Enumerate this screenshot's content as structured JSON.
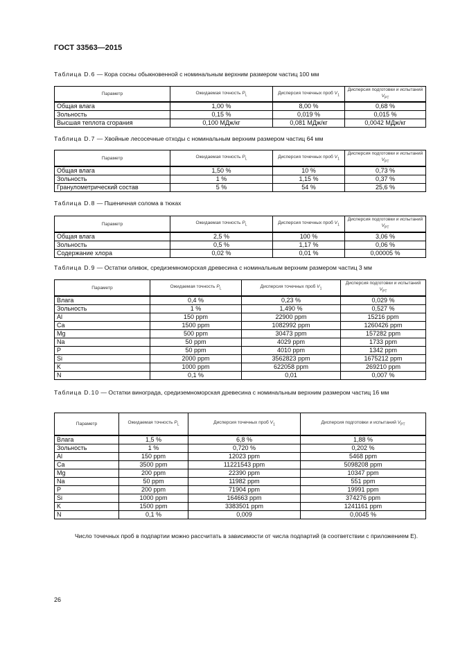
{
  "doc_header": "ГОСТ 33563—2015",
  "tables": [
    {
      "label": "Таблица D.6",
      "title": " — Кора сосны обыкновенной с номинальным верхним размером частиц 100 мм",
      "headers": [
        {
          "text": "Параметр"
        },
        {
          "text": "Ожидаемая точность ",
          "var": "P",
          "sub": "L"
        },
        {
          "text": "Дисперсия точечных проб ",
          "var": "V",
          "sub": "1"
        },
        {
          "text": "Дисперсия подготовки и испытаний ",
          "var": "V",
          "sub": "PT"
        }
      ],
      "rows": [
        [
          "Общая влага",
          "1,00 %",
          "8,00 %",
          "0,68 %"
        ],
        [
          "Зольность",
          "0,15 %",
          "0,019 %",
          "0,015 %"
        ],
        [
          "Высшая теплота сгорания",
          "0,100 МДж/кг",
          "0,081 МДж/кг",
          "0,0042 МДж/кг"
        ]
      ]
    },
    {
      "label": "Таблица D.7",
      "title": " — Хвойные лесосечные отходы с номинальным верхним размером частиц 64 мм",
      "headers": [
        {
          "text": "Параметр"
        },
        {
          "text": "Ожидаемая точность ",
          "var": "P",
          "sub": "L"
        },
        {
          "text": "Дисперсия точечных проб ",
          "var": "V",
          "sub": "1"
        },
        {
          "text": "Дисперсия подготовки и испытаний ",
          "var": "V",
          "sub": "PT"
        }
      ],
      "rows": [
        [
          "Общая влага",
          "1,50 %",
          "10 %",
          "0,73 %"
        ],
        [
          "Зольность",
          "1 %",
          "1,15 %",
          "0,37 %"
        ],
        [
          "Гранулометрический состав",
          "5 %",
          "54 %",
          "25,6 %"
        ]
      ]
    },
    {
      "label": "Таблица D.8",
      "title": " — Пшеничная солома в тюках",
      "headers": [
        {
          "text": "Параметр"
        },
        {
          "text": "Ожидаемая точность ",
          "var": "P",
          "sub": "L"
        },
        {
          "text": "Дисперсия точечных проб ",
          "var": "V",
          "sub": "1"
        },
        {
          "text": "Дисперсия подготовки и испытаний ",
          "var": "V",
          "sub": "PT"
        }
      ],
      "rows": [
        [
          "Общая влага",
          "2,5 %",
          "100 %",
          "3,06 %"
        ],
        [
          "Зольность",
          "0,5 %",
          "1,17 %",
          "0,06 %"
        ],
        [
          "Содержание хлора",
          "0,02 %",
          "0,01 %",
          "0,00005 %"
        ]
      ]
    },
    {
      "label": "Таблица D.9",
      "title": " — Остатки оливок, средиземноморская древесина с номинальным верхним размером частиц 3 мм",
      "headers": [
        {
          "text": "Параметр"
        },
        {
          "text": "Ожидаемая точность ",
          "var": "P",
          "sub": "L"
        },
        {
          "text": "Дисперсия точечных проб ",
          "var": "V",
          "sub": "1"
        },
        {
          "text": "Дисперсия подготовки и испытаний ",
          "var": "V",
          "sub": "PT"
        }
      ],
      "rows": [
        [
          "Влага",
          "0,4 %",
          "0,23 %",
          "0,029 %"
        ],
        [
          "Зольность",
          "1 %",
          "1,490 %",
          "0,527 %"
        ],
        [
          "Al",
          "150 ppm",
          "22900 ppm",
          "15216 ppm"
        ],
        [
          "Ca",
          "1500 ppm",
          "1082992 ppm",
          "1260426 ppm"
        ],
        [
          "Mg",
          "500 ppm",
          "30473 ppm",
          "157282 ppm"
        ],
        [
          "Na",
          "50 ppm",
          "4029 ppm",
          "1733 ppm"
        ],
        [
          "P",
          "50 ppm",
          "4010 ppm",
          "1342 ppm"
        ],
        [
          "Si",
          "2000 ppm",
          "3562823 ppm",
          "1675212 ppm"
        ],
        [
          "K",
          "1000 ppm",
          "622058 ppm",
          "269210 ppm"
        ],
        [
          "N",
          "0,1 %",
          "0,01",
          "0,007 %"
        ]
      ]
    },
    {
      "label": "Таблица D.10",
      "title": " — Остатки винограда, средиземноморская древесина с номинальным верхним размером частиц 16 мм",
      "headers": [
        {
          "text": "Параметр"
        },
        {
          "text": "Ожидаемая точность ",
          "var": "P",
          "sub": "L"
        },
        {
          "text": "Дисперсия точечных проб ",
          "var": "V",
          "sub": "1"
        },
        {
          "text": "Дисперсия подготовки и испытаний ",
          "var": "V",
          "sub": "PT"
        }
      ],
      "rows": [
        [
          "Влага",
          "1,5 %",
          "6,8 %",
          "1,88 %"
        ],
        [
          "Зольность",
          "1 %",
          "0,720 %",
          "0,202 %"
        ],
        [
          "Al",
          "150 ppm",
          "12023 ppm",
          "5468 ppm"
        ],
        [
          "Ca",
          "3500 ppm",
          "11221543 ppm",
          "5098208 ppm"
        ],
        [
          "Mg",
          "200 ppm",
          "22390 ppm",
          "10347 ppm"
        ],
        [
          "Na",
          "50 ppm",
          "11982 ppm",
          "551 ppm"
        ],
        [
          "P",
          "200 ppm",
          "71904 ppm",
          "19991 ppm"
        ],
        [
          "Si",
          "1000 ppm",
          "164663 ppm",
          "374276 ppm"
        ],
        [
          "K",
          "1500 ppm",
          "3383501 ppm",
          "1241161 ppm"
        ],
        [
          "N",
          "0,1 %",
          "0,009",
          "0,0045 %"
        ]
      ]
    }
  ],
  "paragraph": "Число точечных проб в подпартии можно рассчитать в зависимости от числа подпартий (в соответствии с приложением E).",
  "page_number": "26"
}
